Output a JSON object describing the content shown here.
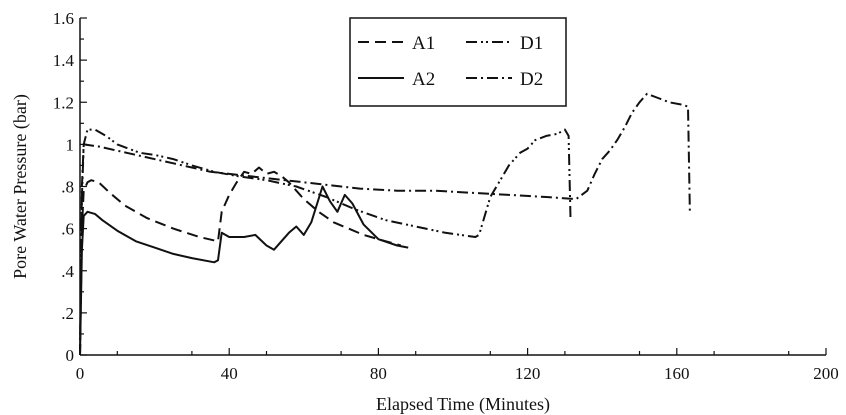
{
  "chart_data": {
    "type": "line",
    "title": "",
    "xlabel": "Elapsed Time (Minutes)",
    "ylabel": "Pore Water Pressure (bar)",
    "xlim": [
      0,
      200
    ],
    "ylim": [
      0,
      1.6
    ],
    "x_ticks": [
      0,
      40,
      80,
      120,
      160,
      200
    ],
    "x_tick_labels": [
      "0",
      "40",
      "80",
      "120",
      "160",
      "200"
    ],
    "y_ticks": [
      0,
      0.2,
      0.4,
      0.6,
      0.8,
      1.0,
      1.2,
      1.4,
      1.6
    ],
    "y_tick_labels": [
      "0",
      ".2",
      ".4",
      ".6",
      ".8",
      "1",
      "1.2",
      "1.4",
      "1.6"
    ],
    "grid": false,
    "legend_position": "top-center",
    "series": [
      {
        "name": "A1",
        "dash": "dash",
        "points": [
          [
            0,
            0
          ],
          [
            0.5,
            0.6
          ],
          [
            1,
            0.78
          ],
          [
            2,
            0.82
          ],
          [
            3,
            0.83
          ],
          [
            5,
            0.82
          ],
          [
            8,
            0.77
          ],
          [
            12,
            0.71
          ],
          [
            18,
            0.65
          ],
          [
            25,
            0.6
          ],
          [
            32,
            0.56
          ],
          [
            37,
            0.54
          ],
          [
            38,
            0.68
          ],
          [
            40,
            0.76
          ],
          [
            42,
            0.82
          ],
          [
            44,
            0.87
          ],
          [
            46,
            0.86
          ],
          [
            48,
            0.89
          ],
          [
            50,
            0.86
          ],
          [
            52,
            0.87
          ],
          [
            54,
            0.85
          ],
          [
            56,
            0.82
          ],
          [
            60,
            0.74
          ],
          [
            64,
            0.68
          ],
          [
            68,
            0.63
          ],
          [
            72,
            0.6
          ],
          [
            76,
            0.57
          ],
          [
            80,
            0.55
          ],
          [
            84,
            0.53
          ],
          [
            86,
            0.52
          ]
        ]
      },
      {
        "name": "A2",
        "dash": "solid",
        "points": [
          [
            0,
            0
          ],
          [
            0.5,
            0.5
          ],
          [
            1,
            0.66
          ],
          [
            2,
            0.68
          ],
          [
            4,
            0.67
          ],
          [
            6,
            0.64
          ],
          [
            10,
            0.59
          ],
          [
            15,
            0.54
          ],
          [
            20,
            0.51
          ],
          [
            25,
            0.48
          ],
          [
            30,
            0.46
          ],
          [
            36,
            0.44
          ],
          [
            37,
            0.45
          ],
          [
            38,
            0.58
          ],
          [
            40,
            0.56
          ],
          [
            44,
            0.56
          ],
          [
            47,
            0.57
          ],
          [
            50,
            0.52
          ],
          [
            52,
            0.5
          ],
          [
            56,
            0.58
          ],
          [
            58,
            0.61
          ],
          [
            60,
            0.57
          ],
          [
            62,
            0.63
          ],
          [
            65,
            0.8
          ],
          [
            67,
            0.73
          ],
          [
            69,
            0.68
          ],
          [
            71,
            0.76
          ],
          [
            73,
            0.72
          ],
          [
            76,
            0.62
          ],
          [
            80,
            0.55
          ],
          [
            85,
            0.52
          ],
          [
            88,
            0.51
          ]
        ]
      },
      {
        "name": "D1",
        "dash": "dash-dot-dot",
        "points": [
          [
            0,
            0
          ],
          [
            0.5,
            0.75
          ],
          [
            1,
            1.0
          ],
          [
            2,
            1.07
          ],
          [
            4,
            1.07
          ],
          [
            7,
            1.04
          ],
          [
            10,
            1.0
          ],
          [
            13,
            0.98
          ],
          [
            16,
            0.96
          ],
          [
            20,
            0.95
          ],
          [
            25,
            0.93
          ],
          [
            30,
            0.9
          ],
          [
            36,
            0.87
          ],
          [
            42,
            0.85
          ],
          [
            50,
            0.83
          ],
          [
            58,
            0.8
          ],
          [
            66,
            0.75
          ],
          [
            74,
            0.69
          ],
          [
            82,
            0.64
          ],
          [
            90,
            0.61
          ],
          [
            98,
            0.58
          ],
          [
            106,
            0.56
          ],
          [
            107,
            0.57
          ],
          [
            110,
            0.75
          ],
          [
            113,
            0.84
          ],
          [
            115,
            0.9
          ],
          [
            118,
            0.96
          ],
          [
            120,
            0.98
          ],
          [
            122,
            1.02
          ],
          [
            125,
            1.04
          ],
          [
            128,
            1.05
          ],
          [
            130,
            1.07
          ],
          [
            131,
            1.04
          ],
          [
            131.5,
            0.65
          ]
        ]
      },
      {
        "name": "D2",
        "dash": "dash-dot",
        "points": [
          [
            0,
            0
          ],
          [
            0.5,
            0.8
          ],
          [
            1,
            1.0
          ],
          [
            5,
            0.99
          ],
          [
            15,
            0.95
          ],
          [
            25,
            0.91
          ],
          [
            35,
            0.87
          ],
          [
            45,
            0.85
          ],
          [
            55,
            0.83
          ],
          [
            65,
            0.81
          ],
          [
            75,
            0.79
          ],
          [
            85,
            0.78
          ],
          [
            95,
            0.78
          ],
          [
            105,
            0.77
          ],
          [
            115,
            0.76
          ],
          [
            125,
            0.75
          ],
          [
            133,
            0.74
          ],
          [
            136,
            0.78
          ],
          [
            138,
            0.86
          ],
          [
            140,
            0.93
          ],
          [
            142,
            0.97
          ],
          [
            144,
            1.02
          ],
          [
            146,
            1.08
          ],
          [
            148,
            1.15
          ],
          [
            150,
            1.2
          ],
          [
            152,
            1.24
          ],
          [
            155,
            1.22
          ],
          [
            158,
            1.2
          ],
          [
            161,
            1.19
          ],
          [
            163,
            1.18
          ],
          [
            163.5,
            0.67
          ]
        ]
      }
    ]
  }
}
